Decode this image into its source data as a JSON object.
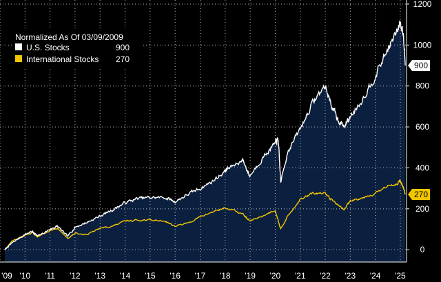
{
  "chart_data": {
    "type": "line",
    "title": "",
    "legend": {
      "title": "Normalized As Of 03/09/2009",
      "position": "top-left",
      "entries": [
        {
          "name": "U.S. Stocks",
          "value": "900",
          "color": "#ffffff"
        },
        {
          "name": "International Stocks",
          "value": "270",
          "color": "#f2c500"
        }
      ]
    },
    "colors": {
      "background": "#000000",
      "area_fill": "#0b1f3e",
      "grid": "#ffffff",
      "us": "#ffffff",
      "intl": "#f2c500"
    },
    "xlabel": "",
    "ylabel": "",
    "xlim": [
      2009.0,
      2025.25
    ],
    "ylim": [
      -60,
      1220
    ],
    "y_ticks": [
      0,
      200,
      400,
      600,
      800,
      1000,
      1200
    ],
    "x_ticks": [
      2009,
      2010,
      2011,
      2012,
      2013,
      2014,
      2015,
      2016,
      2017,
      2018,
      2019,
      2020,
      2021,
      2022,
      2023,
      2024,
      2025
    ],
    "x_tick_labels": [
      "'09",
      "'10",
      "'11",
      "'12",
      "'13",
      "'14",
      "'15",
      "'16",
      "'17",
      "'18",
      "'19",
      "'20",
      "'21",
      "'22",
      "'23",
      "'24",
      "'25"
    ],
    "end_labels": {
      "us": "900",
      "intl": "270"
    },
    "series": [
      {
        "name": "U.S. Stocks",
        "x": [
          2009.19,
          2009.5,
          2010.0,
          2010.3,
          2010.5,
          2011.0,
          2011.3,
          2011.7,
          2012.0,
          2012.5,
          2013.0,
          2013.5,
          2014.0,
          2014.5,
          2015.0,
          2015.6,
          2016.0,
          2016.5,
          2017.0,
          2017.5,
          2018.0,
          2018.1,
          2018.7,
          2018.98,
          2019.5,
          2020.0,
          2020.12,
          2020.22,
          2020.5,
          2021.0,
          2021.5,
          2021.99,
          2022.3,
          2022.5,
          2022.75,
          2023.0,
          2023.5,
          2024.0,
          2024.5,
          2024.9,
          2025.0,
          2025.12,
          2025.2
        ],
        "values": [
          0,
          35,
          75,
          90,
          65,
          100,
          115,
          65,
          110,
          135,
          165,
          195,
          230,
          250,
          255,
          255,
          235,
          270,
          300,
          335,
          385,
          395,
          440,
          360,
          450,
          520,
          540,
          330,
          480,
          590,
          720,
          800,
          690,
          640,
          600,
          650,
          740,
          850,
          980,
          1070,
          1120,
          1050,
          900
        ]
      },
      {
        "name": "International Stocks",
        "x": [
          2009.19,
          2009.5,
          2010.0,
          2010.3,
          2010.5,
          2011.0,
          2011.3,
          2011.7,
          2012.0,
          2012.5,
          2013.0,
          2013.5,
          2014.0,
          2014.5,
          2015.0,
          2015.6,
          2016.0,
          2016.5,
          2017.0,
          2017.5,
          2018.0,
          2018.7,
          2018.98,
          2019.5,
          2020.0,
          2020.22,
          2020.5,
          2021.0,
          2021.5,
          2021.99,
          2022.3,
          2022.75,
          2023.0,
          2023.5,
          2024.0,
          2024.5,
          2024.9,
          2025.0,
          2025.12,
          2025.2
        ],
        "values": [
          0,
          45,
          70,
          85,
          60,
          95,
          105,
          55,
          80,
          75,
          105,
          115,
          140,
          145,
          145,
          140,
          115,
          130,
          160,
          185,
          205,
          175,
          140,
          165,
          195,
          100,
          165,
          245,
          275,
          275,
          240,
          195,
          240,
          255,
          275,
          310,
          325,
          340,
          300,
          270
        ]
      }
    ]
  }
}
